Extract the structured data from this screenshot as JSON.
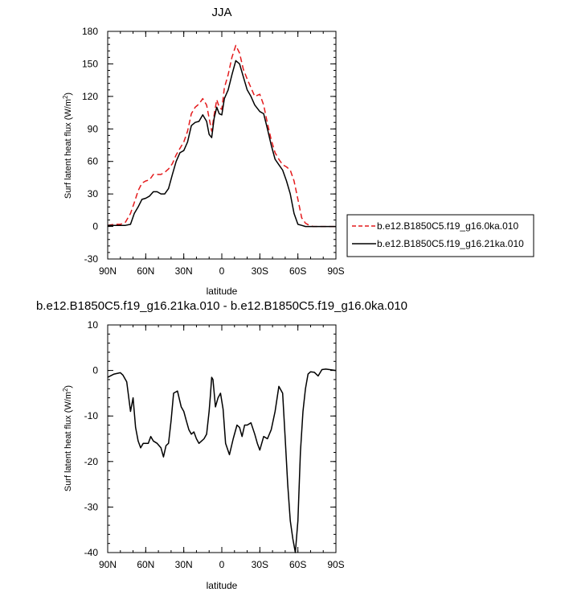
{
  "chart_data": [
    {
      "type": "line",
      "title": "JJA",
      "xlabel": "latitude",
      "ylabel": "Surf latent heat flux (W/m",
      "ylabel_sup": "2",
      "ylabel_close": ")",
      "xlim": [
        90,
        -90
      ],
      "ylim": [
        -30,
        180
      ],
      "x_ticks": [
        90,
        60,
        30,
        0,
        -30,
        -60,
        -90
      ],
      "x_ticklabels": [
        "90N",
        "60N",
        "30N",
        "0",
        "30S",
        "60S",
        "90S"
      ],
      "y_ticks": [
        -30,
        0,
        30,
        60,
        90,
        120,
        150,
        180
      ],
      "y_ticklabels": [
        "-30",
        "0",
        "30",
        "60",
        "90",
        "120",
        "150",
        "180"
      ],
      "legend_position": "right",
      "series": [
        {
          "name": "b.e12.B1850C5.f19_g16.0ka.010",
          "color": "#e41a1c",
          "dash": "dashed",
          "x": [
            90,
            85,
            80,
            76,
            72,
            69,
            66,
            63,
            60,
            57,
            54,
            51,
            48,
            45,
            42,
            39,
            36,
            33,
            30,
            27,
            24,
            21,
            18,
            15,
            12,
            10,
            8,
            6,
            4,
            2,
            0,
            -2,
            -5,
            -8,
            -11,
            -14,
            -17,
            -20,
            -23,
            -26,
            -30,
            -33,
            -36,
            -39,
            -42,
            -45,
            -48,
            -51,
            -54,
            -57,
            -60,
            -63,
            -66,
            -69,
            -72,
            -76,
            -80,
            -85,
            -90
          ],
          "y": [
            1,
            2,
            2,
            4,
            12,
            22,
            33,
            40,
            42,
            43,
            48,
            48,
            48,
            50,
            53,
            58,
            66,
            72,
            78,
            88,
            104,
            110,
            113,
            118,
            112,
            100,
            88,
            103,
            117,
            110,
            108,
            128,
            140,
            156,
            167,
            160,
            145,
            136,
            128,
            120,
            122,
            112,
            95,
            80,
            68,
            62,
            57,
            55,
            52,
            42,
            25,
            8,
            3,
            1,
            0,
            0,
            0,
            0,
            0
          ]
        },
        {
          "name": "b.e12.B1850C5.f19_g16.21ka.010",
          "color": "#000000",
          "dash": "solid",
          "x": [
            90,
            85,
            80,
            76,
            72,
            69,
            66,
            63,
            60,
            57,
            54,
            51,
            48,
            45,
            42,
            39,
            36,
            33,
            30,
            27,
            24,
            21,
            18,
            15,
            12,
            10,
            8,
            6,
            4,
            2,
            0,
            -2,
            -5,
            -8,
            -11,
            -14,
            -17,
            -20,
            -23,
            -26,
            -30,
            -33,
            -36,
            -39,
            -42,
            -45,
            -48,
            -51,
            -54,
            -57,
            -60,
            -63,
            -66,
            -69,
            -72,
            -76,
            -80,
            -85,
            -90
          ],
          "y": [
            1,
            1,
            1,
            1,
            2,
            12,
            18,
            25,
            26,
            28,
            32,
            32,
            30,
            30,
            35,
            48,
            60,
            68,
            70,
            78,
            93,
            96,
            97,
            103,
            97,
            85,
            82,
            100,
            110,
            104,
            103,
            118,
            126,
            140,
            153,
            150,
            138,
            126,
            120,
            112,
            106,
            104,
            90,
            75,
            62,
            57,
            52,
            42,
            30,
            12,
            2,
            1,
            0,
            0,
            0,
            0,
            0,
            0,
            0
          ]
        }
      ]
    },
    {
      "type": "line",
      "title": "b.e12.B1850C5.f19_g16.21ka.010 - b.e12.B1850C5.f19_g16.0ka.010",
      "xlabel": "latitude",
      "ylabel": "Surf latent heat flux (W/m",
      "ylabel_sup": "2",
      "ylabel_close": ")",
      "xlim": [
        90,
        -90
      ],
      "ylim": [
        -40,
        10
      ],
      "x_ticks": [
        90,
        60,
        30,
        0,
        -30,
        -60,
        -90
      ],
      "x_ticklabels": [
        "90N",
        "60N",
        "30N",
        "0",
        "30S",
        "60S",
        "90S"
      ],
      "y_ticks": [
        -40,
        -30,
        -20,
        -10,
        0,
        10
      ],
      "y_ticklabels": [
        "-40",
        "-30",
        "-20",
        "-10",
        "0",
        "10"
      ],
      "series": [
        {
          "color": "#000000",
          "dash": "solid",
          "x": [
            90,
            85,
            80,
            78,
            75,
            72,
            70,
            68,
            66,
            64,
            62,
            60,
            58,
            56,
            54,
            51,
            48,
            46,
            44,
            42,
            40,
            38,
            35,
            32,
            30,
            28,
            26,
            24,
            22,
            20,
            18,
            16,
            14,
            12,
            10,
            9,
            8,
            7,
            5,
            3,
            1,
            -1,
            -3,
            -6,
            -9,
            -12,
            -14,
            -16,
            -18,
            -20,
            -23,
            -26,
            -28,
            -30,
            -33,
            -36,
            -39,
            -42,
            -45,
            -48,
            -50,
            -52,
            -54,
            -56,
            -58,
            -60,
            -62,
            -64,
            -66,
            -68,
            -70,
            -73,
            -76,
            -79,
            -82,
            -85,
            -90
          ],
          "y": [
            -1.5,
            -0.8,
            -0.5,
            -1.0,
            -2.5,
            -9.0,
            -6.0,
            -12.5,
            -15.5,
            -17.0,
            -16.0,
            -16.0,
            -16.0,
            -14.5,
            -15.5,
            -16.0,
            -17.0,
            -19.0,
            -16.5,
            -16.0,
            -11.0,
            -5.0,
            -4.5,
            -8.0,
            -9.0,
            -11.0,
            -13.0,
            -14.0,
            -13.5,
            -15.0,
            -16.0,
            -15.5,
            -15.0,
            -14.0,
            -9.0,
            -5.5,
            -1.5,
            -2.0,
            -8.0,
            -6.0,
            -5.0,
            -8.5,
            -16.0,
            -18.5,
            -15.0,
            -12.0,
            -12.5,
            -14.5,
            -12.0,
            -12.0,
            -11.5,
            -14.0,
            -16.0,
            -17.5,
            -14.5,
            -15.0,
            -13.0,
            -9.0,
            -3.5,
            -5.0,
            -15.0,
            -25.0,
            -33.0,
            -37.0,
            -40.0,
            -33.0,
            -18.0,
            -9.0,
            -4.0,
            -0.8,
            -0.3,
            -0.4,
            -1.2,
            0.2,
            0.3,
            0.2,
            0.0
          ]
        }
      ]
    }
  ]
}
